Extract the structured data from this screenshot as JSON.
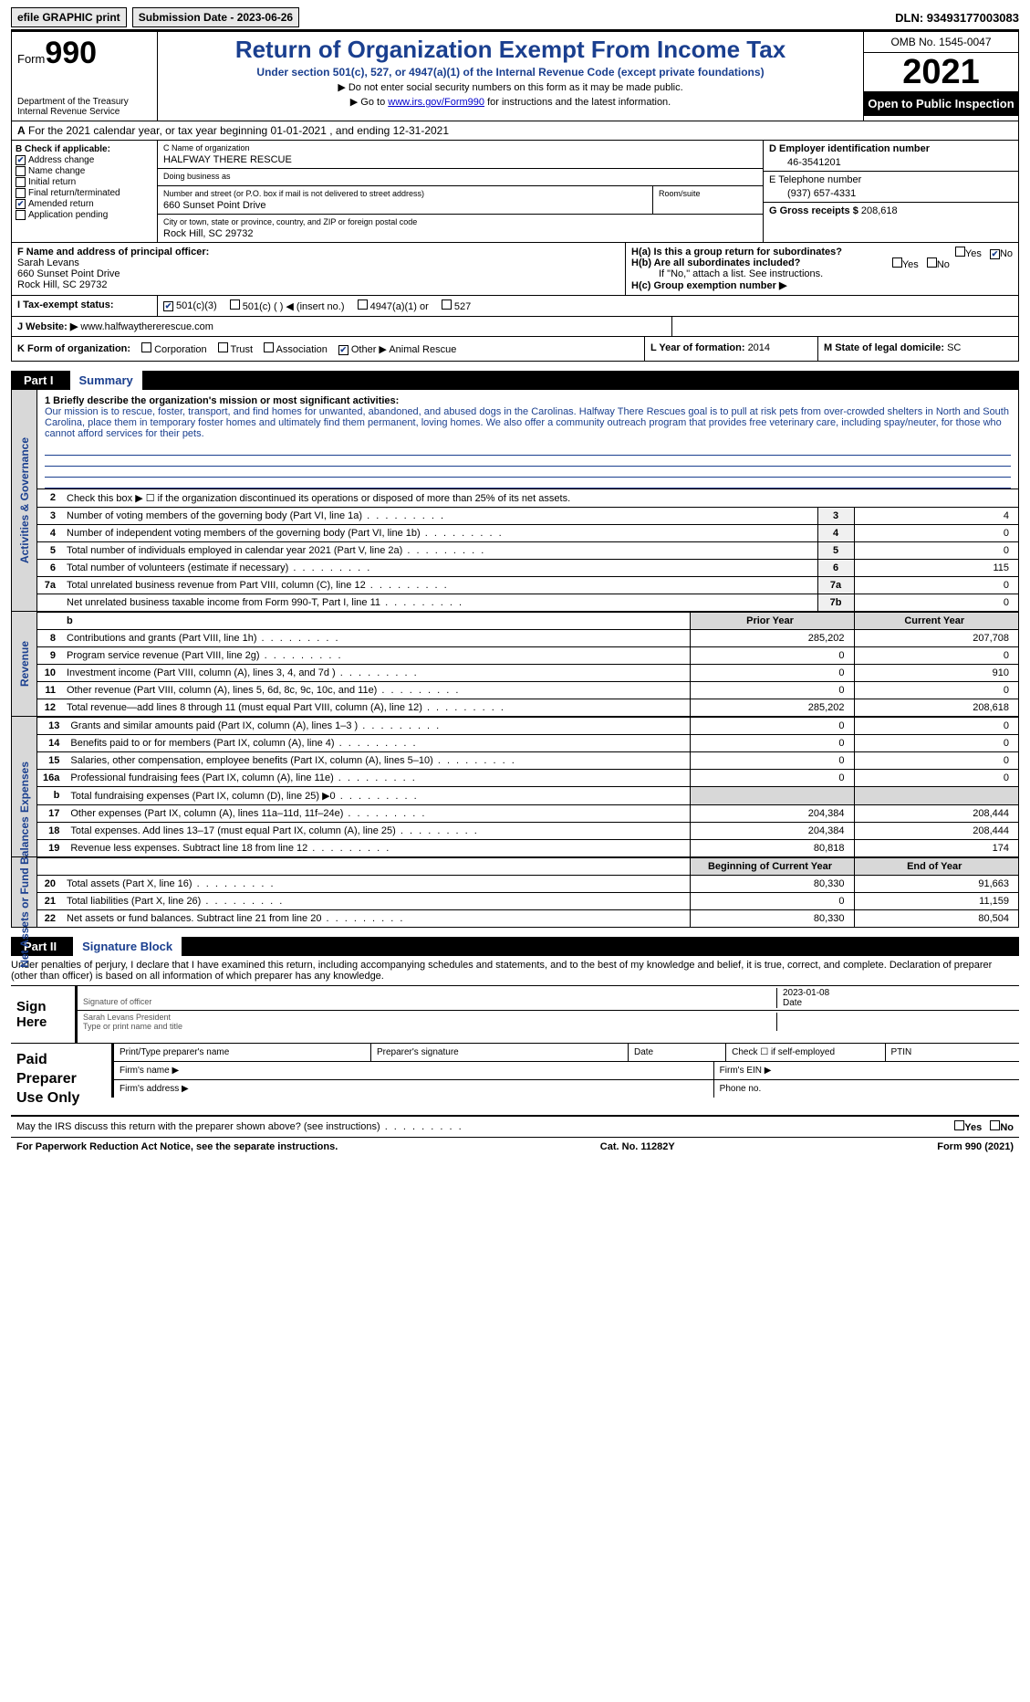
{
  "topbar": {
    "efile": "efile GRAPHIC print",
    "submission": "Submission Date - 2023-06-26",
    "dln": "DLN: 93493177003083"
  },
  "header": {
    "form_label": "Form",
    "form_num": "990",
    "dept1": "Department of the Treasury",
    "dept2": "Internal Revenue Service",
    "title": "Return of Organization Exempt From Income Tax",
    "sub": "Under section 501(c), 527, or 4947(a)(1) of the Internal Revenue Code (except private foundations)",
    "inst1": "▶ Do not enter social security numbers on this form as it may be made public.",
    "inst2_pre": "▶ Go to ",
    "inst2_link": "www.irs.gov/Form990",
    "inst2_post": " for instructions and the latest information.",
    "omb": "OMB No. 1545-0047",
    "year": "2021",
    "open": "Open to Public Inspection"
  },
  "line_a": "For the 2021 calendar year, or tax year beginning 01-01-2021   , and ending 12-31-2021",
  "sec_b": {
    "b_hdr": "B Check if applicable:",
    "checks": [
      {
        "label": "Address change",
        "on": true
      },
      {
        "label": "Name change",
        "on": false
      },
      {
        "label": "Initial return",
        "on": false
      },
      {
        "label": "Final return/terminated",
        "on": false
      },
      {
        "label": "Amended return",
        "on": true
      },
      {
        "label": "Application pending",
        "on": false
      }
    ],
    "c_lbl": "C Name of organization",
    "c_val": "HALFWAY THERE RESCUE",
    "dba_lbl": "Doing business as",
    "dba_val": "",
    "addr_lbl": "Number and street (or P.O. box if mail is not delivered to street address)",
    "addr_val": "660 Sunset Point Drive",
    "suite_lbl": "Room/suite",
    "city_lbl": "City or town, state or province, country, and ZIP or foreign postal code",
    "city_val": "Rock Hill, SC  29732",
    "d_lbl": "D Employer identification number",
    "d_val": "46-3541201",
    "e_lbl": "E Telephone number",
    "e_val": "(937) 657-4331",
    "g_lbl": "G Gross receipts $ ",
    "g_val": "208,618"
  },
  "sec_fh": {
    "f_lbl": "F Name and address of principal officer:",
    "f_name": "Sarah Levans",
    "f_addr1": "660 Sunset Point Drive",
    "f_addr2": "Rock Hill, SC  29732",
    "ha": "H(a)  Is this a group return for subordinates?",
    "hb": "H(b)  Are all subordinates included?",
    "hb_note": "If \"No,\" attach a list. See instructions.",
    "hc": "H(c)  Group exemption number ▶",
    "yes": "Yes",
    "no": "No"
  },
  "status": {
    "i_lbl": "I   Tax-exempt status:",
    "opts": [
      "501(c)(3)",
      "501(c) (  ) ◀ (insert no.)",
      "4947(a)(1) or",
      "527"
    ],
    "j_lbl": "J  Website: ▶",
    "j_val": "www.halfwaythererescue.com"
  },
  "kl": {
    "k_lbl": "K Form of organization:",
    "k_opts": [
      "Corporation",
      "Trust",
      "Association",
      "Other ▶ Animal Rescue"
    ],
    "l_lbl": "L Year of formation: ",
    "l_val": "2014",
    "m_lbl": "M State of legal domicile: ",
    "m_val": "SC"
  },
  "part1": {
    "hdr_box": "Part I",
    "hdr_title": "Summary",
    "mission_lbl": "1  Briefly describe the organization's mission or most significant activities:",
    "mission": "Our mission is to rescue, foster, transport, and find homes for unwanted, abandoned, and abused dogs in the Carolinas. Halfway There Rescues goal is to pull at risk pets from over-crowded shelters in North and South Carolina, place them in temporary foster homes and ultimately find them permanent, loving homes. We also offer a community outreach program that provides free veterinary care, including spay/neuter, for those who cannot afford services for their pets.",
    "side_act": "Activities & Governance",
    "side_rev": "Revenue",
    "side_exp": "Expenses",
    "side_net": "Net Assets or Fund Balances",
    "line2": "Check this box ▶ ☐  if the organization discontinued its operations or disposed of more than 25% of its net assets.",
    "rows_gov": [
      {
        "n": "3",
        "d": "Number of voting members of the governing body (Part VI, line 1a)",
        "k": "3",
        "v": "4"
      },
      {
        "n": "4",
        "d": "Number of independent voting members of the governing body (Part VI, line 1b)",
        "k": "4",
        "v": "0"
      },
      {
        "n": "5",
        "d": "Total number of individuals employed in calendar year 2021 (Part V, line 2a)",
        "k": "5",
        "v": "0"
      },
      {
        "n": "6",
        "d": "Total number of volunteers (estimate if necessary)",
        "k": "6",
        "v": "115"
      },
      {
        "n": "7a",
        "d": "Total unrelated business revenue from Part VIII, column (C), line 12",
        "k": "7a",
        "v": "0"
      },
      {
        "n": "",
        "d": "Net unrelated business taxable income from Form 990-T, Part I, line 11",
        "k": "7b",
        "v": "0"
      }
    ],
    "py_hdr": "Prior Year",
    "cy_hdr": "Current Year",
    "rows_rev": [
      {
        "n": "8",
        "d": "Contributions and grants (Part VIII, line 1h)",
        "p": "285,202",
        "c": "207,708"
      },
      {
        "n": "9",
        "d": "Program service revenue (Part VIII, line 2g)",
        "p": "0",
        "c": "0"
      },
      {
        "n": "10",
        "d": "Investment income (Part VIII, column (A), lines 3, 4, and 7d )",
        "p": "0",
        "c": "910"
      },
      {
        "n": "11",
        "d": "Other revenue (Part VIII, column (A), lines 5, 6d, 8c, 9c, 10c, and 11e)",
        "p": "0",
        "c": "0"
      },
      {
        "n": "12",
        "d": "Total revenue—add lines 8 through 11 (must equal Part VIII, column (A), line 12)",
        "p": "285,202",
        "c": "208,618"
      }
    ],
    "rows_exp": [
      {
        "n": "13",
        "d": "Grants and similar amounts paid (Part IX, column (A), lines 1–3 )",
        "p": "0",
        "c": "0"
      },
      {
        "n": "14",
        "d": "Benefits paid to or for members (Part IX, column (A), line 4)",
        "p": "0",
        "c": "0"
      },
      {
        "n": "15",
        "d": "Salaries, other compensation, employee benefits (Part IX, column (A), lines 5–10)",
        "p": "0",
        "c": "0"
      },
      {
        "n": "16a",
        "d": "Professional fundraising fees (Part IX, column (A), line 11e)",
        "p": "0",
        "c": "0"
      },
      {
        "n": "b",
        "d": "Total fundraising expenses (Part IX, column (D), line 25) ▶0",
        "p": "",
        "c": ""
      },
      {
        "n": "17",
        "d": "Other expenses (Part IX, column (A), lines 11a–11d, 11f–24e)",
        "p": "204,384",
        "c": "208,444"
      },
      {
        "n": "18",
        "d": "Total expenses. Add lines 13–17 (must equal Part IX, column (A), line 25)",
        "p": "204,384",
        "c": "208,444"
      },
      {
        "n": "19",
        "d": "Revenue less expenses. Subtract line 18 from line 12",
        "p": "80,818",
        "c": "174"
      }
    ],
    "by_hdr": "Beginning of Current Year",
    "ey_hdr": "End of Year",
    "rows_net": [
      {
        "n": "20",
        "d": "Total assets (Part X, line 16)",
        "p": "80,330",
        "c": "91,663"
      },
      {
        "n": "21",
        "d": "Total liabilities (Part X, line 26)",
        "p": "0",
        "c": "11,159"
      },
      {
        "n": "22",
        "d": "Net assets or fund balances. Subtract line 21 from line 20",
        "p": "80,330",
        "c": "80,504"
      }
    ]
  },
  "part2": {
    "hdr_box": "Part II",
    "hdr_title": "Signature Block",
    "perjury": "Under penalties of perjury, I declare that I have examined this return, including accompanying schedules and statements, and to the best of my knowledge and belief, it is true, correct, and complete. Declaration of preparer (other than officer) is based on all information of which preparer has any knowledge.",
    "sign_here": "Sign Here",
    "sig_officer": "Signature of officer",
    "sig_date": "2023-01-08",
    "date_lbl": "Date",
    "sig_name": "Sarah Levans President",
    "sig_type": "Type or print name and title",
    "paid_lbl": "Paid Preparer Use Only",
    "pp_name": "Print/Type preparer's name",
    "pp_sig": "Preparer's signature",
    "pp_date": "Date",
    "pp_self": "Check ☐ if self-employed",
    "pp_ptin": "PTIN",
    "firm_name": "Firm's name   ▶",
    "firm_ein": "Firm's EIN ▶",
    "firm_addr": "Firm's address ▶",
    "phone": "Phone no.",
    "discuss": "May the IRS discuss this return with the preparer shown above? (see instructions)",
    "yes": "Yes",
    "no": "No"
  },
  "footer": {
    "left": "For Paperwork Reduction Act Notice, see the separate instructions.",
    "mid": "Cat. No. 11282Y",
    "right": "Form 990 (2021)"
  }
}
